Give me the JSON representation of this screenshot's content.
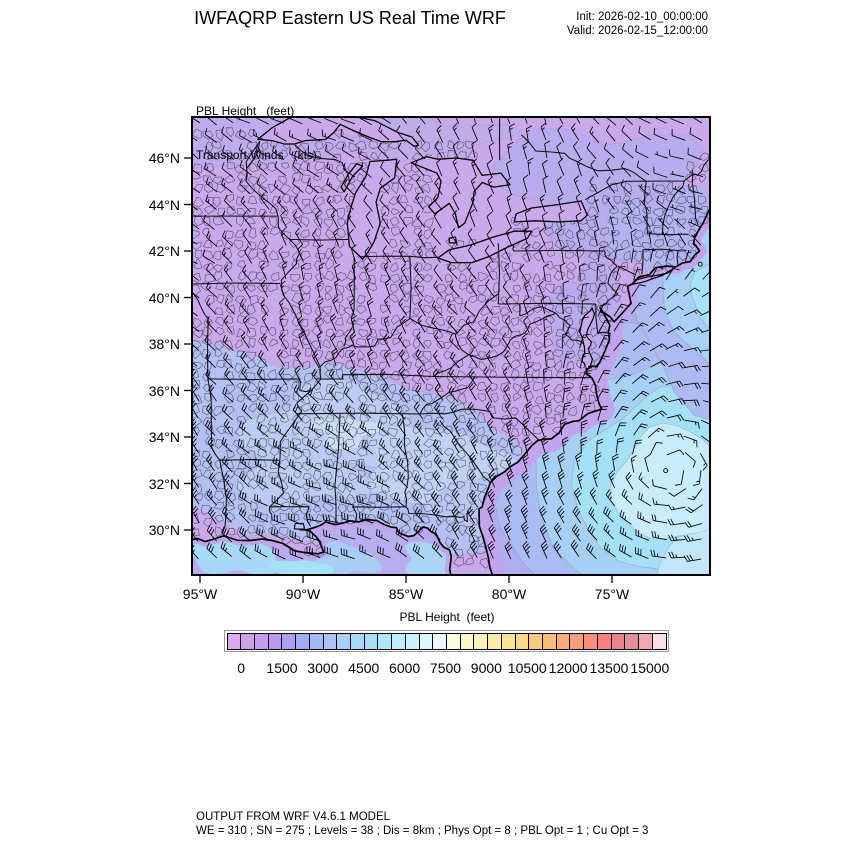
{
  "header": {
    "title": "IWFAQRP Eastern US Real Time WRF",
    "init": "Init: 2026-02-10_00:00:00",
    "valid": "Valid: 2026-02-15_12:00:00"
  },
  "plot": {
    "field_label_line1": "PBL Height   (feet)",
    "field_label_line2": "Transport Winds   (kts)",
    "lat_tick_labels": [
      "46°N",
      "44°N",
      "42°N",
      "40°N",
      "38°N",
      "36°N",
      "34°N",
      "32°N",
      "30°N"
    ],
    "lon_tick_labels": [
      "95°W",
      "90°W",
      "85°W",
      "80°W",
      "75°W"
    ]
  },
  "colorbar": {
    "title": "PBL Height  (feet)",
    "tick_labels": [
      "0",
      "1500",
      "3000",
      "4500",
      "6000",
      "7500",
      "9000",
      "10500",
      "12000",
      "13500",
      "15000"
    ],
    "cell_colors": [
      "#d9aaf0",
      "#cfa2ed",
      "#c49bef",
      "#b89af1",
      "#a99ef3",
      "#a2abf4",
      "#a5b8f6",
      "#a9c5f7",
      "#a9cff8",
      "#a8d8fa",
      "#a7dffa",
      "#ace8fb",
      "#bdeefc",
      "#cdf2fc",
      "#dcf6fd",
      "#e9f9fe",
      "#fbfbe0",
      "#fbf8cc",
      "#fbf3b9",
      "#fbeda6",
      "#fbe495",
      "#fbd988",
      "#fbcc80",
      "#fbbd7b",
      "#fbad78",
      "#fb9d78",
      "#fa8d7c",
      "#f48284",
      "#ea838d",
      "#e29097",
      "#edaab3",
      "#fbe0e8"
    ]
  },
  "footer": {
    "line1": "OUTPUT FROM WRF V4.6.1 MODEL",
    "line2": "WE = 310 ; SN = 275 ; Levels = 38 ; Dis = 8km ; Phys Opt = 8 ; PBL Opt = 1 ; Cu Opt = 3"
  },
  "chart_data": {
    "type": "heatmap",
    "title": "IWFAQRP Eastern US Real Time WRF",
    "subtitle": [
      "PBL Height (feet)",
      "Transport Winds (kts)"
    ],
    "init_time": "2026-02-10_00:00:00",
    "valid_time": "2026-02-15_12:00:00",
    "fill_variable": "PBL Height",
    "fill_units": "feet",
    "overlay_variable": "Transport Winds",
    "overlay_units": "kts",
    "contour_min": 0,
    "contour_max": 15000,
    "contour_interval": 500,
    "label_stride": 1500,
    "lon_ticks": [
      -95,
      -90,
      -85,
      -80,
      -75
    ],
    "lat_ticks": [
      46,
      44,
      42,
      40,
      38,
      36,
      34,
      32,
      30
    ],
    "lon_range": [
      -95.4,
      -70.2
    ],
    "lat_range": [
      28.1,
      47.8
    ],
    "grid_on": false,
    "legend_position": "bottom-colorbar",
    "approx_field": [
      {
        "region": "northern land: Great Lakes, Midwest, Northeast",
        "pbl_feet": "500-1500",
        "winds": "NW 10-20 kt"
      },
      {
        "region": "south-central band: AR/TN/MS/AL/GA/KY",
        "pbl_feet": "2000-4500",
        "winds": "NW 20-35 kt"
      },
      {
        "region": "Gulf of Mexico coast",
        "pbl_feet": "3000-6000",
        "winds": "NW 25-35 kt"
      },
      {
        "region": "SE Atlantic offshore",
        "pbl_feet": "4500-7000",
        "winds": "cyclonic circulation 5-25 kt around center near 73.5W 33.5N"
      },
      {
        "region": "Gulf of Maine offshore",
        "pbl_feet": "2500-5500",
        "winds": "N 10-20 kt"
      }
    ]
  }
}
